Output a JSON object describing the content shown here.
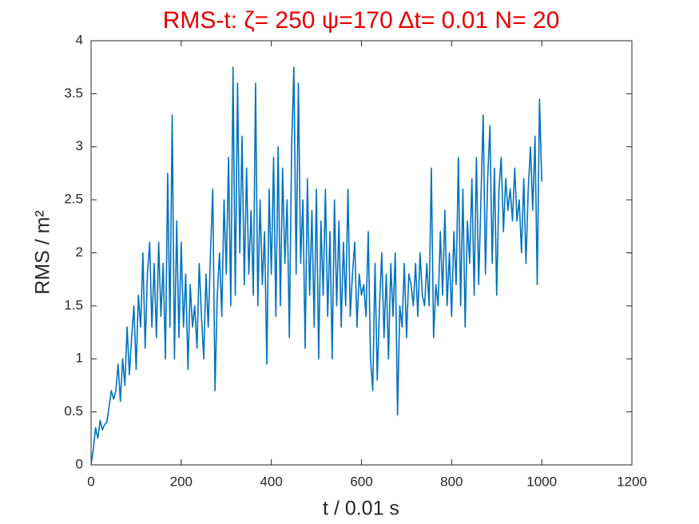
{
  "chart_data": {
    "type": "line",
    "title": "RMS-t:  ζ= 250 ψ=170 Δt= 0.01 N= 20",
    "xlabel": "t / 0.01 s",
    "ylabel": "RMS / m²",
    "color": "#0072BD",
    "xlim": [
      0,
      1200
    ],
    "xticks": [
      0,
      200,
      400,
      600,
      800,
      1000,
      1200
    ],
    "ylim": [
      0,
      4
    ],
    "yticks": [
      0,
      0.5,
      1,
      1.5,
      2,
      2.5,
      3,
      3.5,
      4
    ],
    "x": [
      0,
      5,
      10,
      15,
      20,
      25,
      30,
      35,
      40,
      45,
      50,
      55,
      60,
      65,
      70,
      75,
      80,
      85,
      90,
      95,
      100,
      105,
      110,
      115,
      120,
      125,
      130,
      135,
      140,
      145,
      150,
      155,
      160,
      165,
      170,
      175,
      180,
      185,
      190,
      195,
      200,
      205,
      210,
      215,
      220,
      225,
      230,
      235,
      240,
      245,
      250,
      255,
      260,
      265,
      270,
      275,
      280,
      285,
      290,
      295,
      300,
      305,
      310,
      315,
      320,
      325,
      330,
      335,
      340,
      345,
      350,
      355,
      360,
      365,
      370,
      375,
      380,
      385,
      390,
      395,
      400,
      405,
      410,
      415,
      420,
      425,
      430,
      435,
      440,
      445,
      450,
      455,
      460,
      465,
      470,
      475,
      480,
      485,
      490,
      495,
      500,
      505,
      510,
      515,
      520,
      525,
      530,
      535,
      540,
      545,
      550,
      555,
      560,
      565,
      570,
      575,
      580,
      585,
      590,
      595,
      600,
      605,
      610,
      615,
      620,
      625,
      630,
      635,
      640,
      645,
      650,
      655,
      660,
      665,
      670,
      675,
      680,
      685,
      690,
      695,
      700,
      705,
      710,
      715,
      720,
      725,
      730,
      735,
      740,
      745,
      750,
      755,
      760,
      765,
      770,
      775,
      780,
      785,
      790,
      795,
      800,
      805,
      810,
      815,
      820,
      825,
      830,
      835,
      840,
      845,
      850,
      855,
      860,
      865,
      870,
      875,
      880,
      885,
      890,
      895,
      900,
      905,
      910,
      915,
      920,
      925,
      930,
      935,
      940,
      945,
      950,
      955,
      960,
      965,
      970,
      975,
      980,
      985,
      990,
      995,
      1000
    ],
    "values": [
      0,
      0.15,
      0.35,
      0.25,
      0.42,
      0.33,
      0.38,
      0.4,
      0.55,
      0.7,
      0.62,
      0.7,
      0.95,
      0.6,
      1.0,
      0.75,
      1.3,
      0.85,
      1.2,
      1.5,
      0.9,
      1.6,
      1.3,
      2.0,
      1.1,
      1.8,
      2.1,
      1.3,
      1.9,
      1.2,
      2.1,
      1.4,
      1.9,
      1.0,
      2.75,
      1.3,
      3.3,
      1.0,
      2.3,
      1.2,
      2.1,
      1.3,
      1.8,
      0.9,
      1.7,
      1.3,
      1.5,
      1.1,
      1.9,
      1.4,
      1.0,
      1.8,
      1.3,
      2.0,
      2.6,
      0.7,
      1.6,
      2.0,
      1.4,
      2.5,
      1.8,
      2.9,
      1.5,
      3.75,
      1.6,
      3.6,
      2.0,
      3.1,
      1.7,
      2.8,
      1.8,
      2.4,
      1.6,
      3.6,
      1.5,
      2.5,
      1.7,
      2.2,
      0.95,
      2.6,
      1.8,
      2.9,
      1.4,
      3.0,
      1.5,
      2.8,
      1.9,
      2.5,
      1.2,
      3.0,
      3.75,
      1.8,
      3.6,
      1.9,
      2.5,
      1.1,
      2.7,
      1.6,
      2.4,
      1.3,
      2.6,
      1.0,
      2.3,
      1.6,
      2.6,
      1.4,
      2.2,
      1.0,
      2.5,
      1.5,
      2.3,
      1.3,
      2.1,
      1.5,
      2.6,
      1.4,
      1.8,
      2.1,
      1.3,
      1.8,
      1.6,
      1.7,
      1.4,
      2.2,
      1.0,
      0.7,
      1.9,
      0.8,
      1.5,
      2.0,
      1.2,
      1.8,
      1.0,
      1.9,
      1.4,
      2.0,
      0.47,
      1.5,
      1.3,
      1.9,
      1.2,
      1.8,
      1.7,
      1.5,
      1.9,
      1.4,
      2.0,
      1.6,
      1.5,
      1.9,
      1.5,
      2.8,
      1.2,
      1.7,
      1.5,
      2.2,
      1.6,
      2.4,
      1.5,
      2.0,
      1.4,
      2.2,
      1.7,
      2.9,
      1.5,
      2.6,
      1.3,
      2.3,
      1.9,
      2.7,
      1.6,
      2.9,
      1.7,
      2.5,
      3.3,
      1.8,
      2.7,
      3.2,
      1.9,
      2.8,
      1.6,
      2.6,
      2.9,
      2.2,
      2.7,
      2.4,
      2.6,
      2.3,
      2.8,
      2.3,
      2.5,
      2.0,
      2.7,
      1.9,
      2.6,
      3.0,
      2.4,
      3.1,
      1.7,
      3.45,
      2.67
    ]
  }
}
